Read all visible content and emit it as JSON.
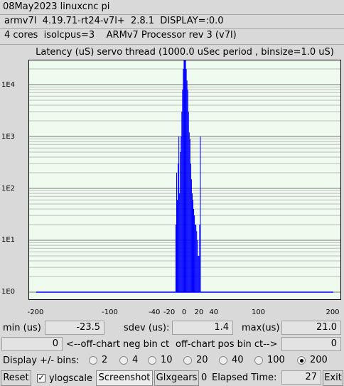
{
  "header": {
    "line1": "08May2023 linuxcnc pi",
    "line2": "armv7l  4.19.71-rt24-v7l+  2.8.1  DISPLAY=:0.0",
    "line3": "4 cores  isolcpus=3    ARMv7 Processor rev 3 (v7l)"
  },
  "chart_data": {
    "type": "bar",
    "title": "Latency (uS) servo thread (1000.0 uSec period , binsize=1.0 uS)",
    "xlim": [
      -200,
      200
    ],
    "ylog": true,
    "ylim_log10": [
      0,
      4.4
    ],
    "x_ticks": [
      "-200",
      "-100",
      "-40",
      "-20",
      "0",
      "20",
      "40",
      "100",
      "200"
    ],
    "x_tick_values": [
      -200,
      -100,
      -40,
      -20,
      0,
      20,
      40,
      100,
      200
    ],
    "y_ticks": [
      "1E0",
      "1E1",
      "1E2",
      "1E3",
      "1E4"
    ],
    "series_color": "#0000ff",
    "bins_x": [
      -12,
      -11,
      -10,
      -9,
      -8,
      -7,
      -6,
      -5,
      -4,
      -3,
      -2,
      -1,
      0,
      1,
      2,
      3,
      4,
      5,
      6,
      7,
      8,
      9,
      10,
      11,
      12,
      13,
      14,
      15,
      16,
      17,
      18,
      19,
      20,
      21
    ],
    "bins_count": [
      20,
      200,
      60,
      300,
      1000,
      80,
      500,
      1000,
      3000,
      8000,
      20000,
      30000,
      30000,
      30000,
      20000,
      12000,
      8000,
      3000,
      1200,
      900,
      300,
      150,
      80,
      60,
      40,
      30,
      20,
      20,
      15,
      10,
      5,
      5,
      20,
      1000
    ]
  },
  "stats": {
    "min_label": "min (us)",
    "min_value": "-23.5",
    "sdev_label": "sdev (us):",
    "sdev_value": "1.4",
    "max_label": "max(us)",
    "max_value": "21.0",
    "neg_ct_value": "0",
    "neg_ct_label": "<--off-chart neg bin ct",
    "pos_ct_label": "off-chart pos bin ct-->",
    "pos_ct_value": "0"
  },
  "bins": {
    "label": "Display +/- bins:",
    "options": [
      "2",
      "4",
      "10",
      "20",
      "40",
      "100",
      "200"
    ],
    "selected": "200"
  },
  "toolbar": {
    "reset_label": "Reset",
    "ylogscale_label": "ylogscale",
    "ylogscale_checked": true,
    "screenshot_label": "Screenshot",
    "glxgears_label": "Glxgears",
    "glxgears_count": "0",
    "elapsed_label": "Elapsed Time:",
    "elapsed_value": "27",
    "exit_label": "Exit"
  }
}
